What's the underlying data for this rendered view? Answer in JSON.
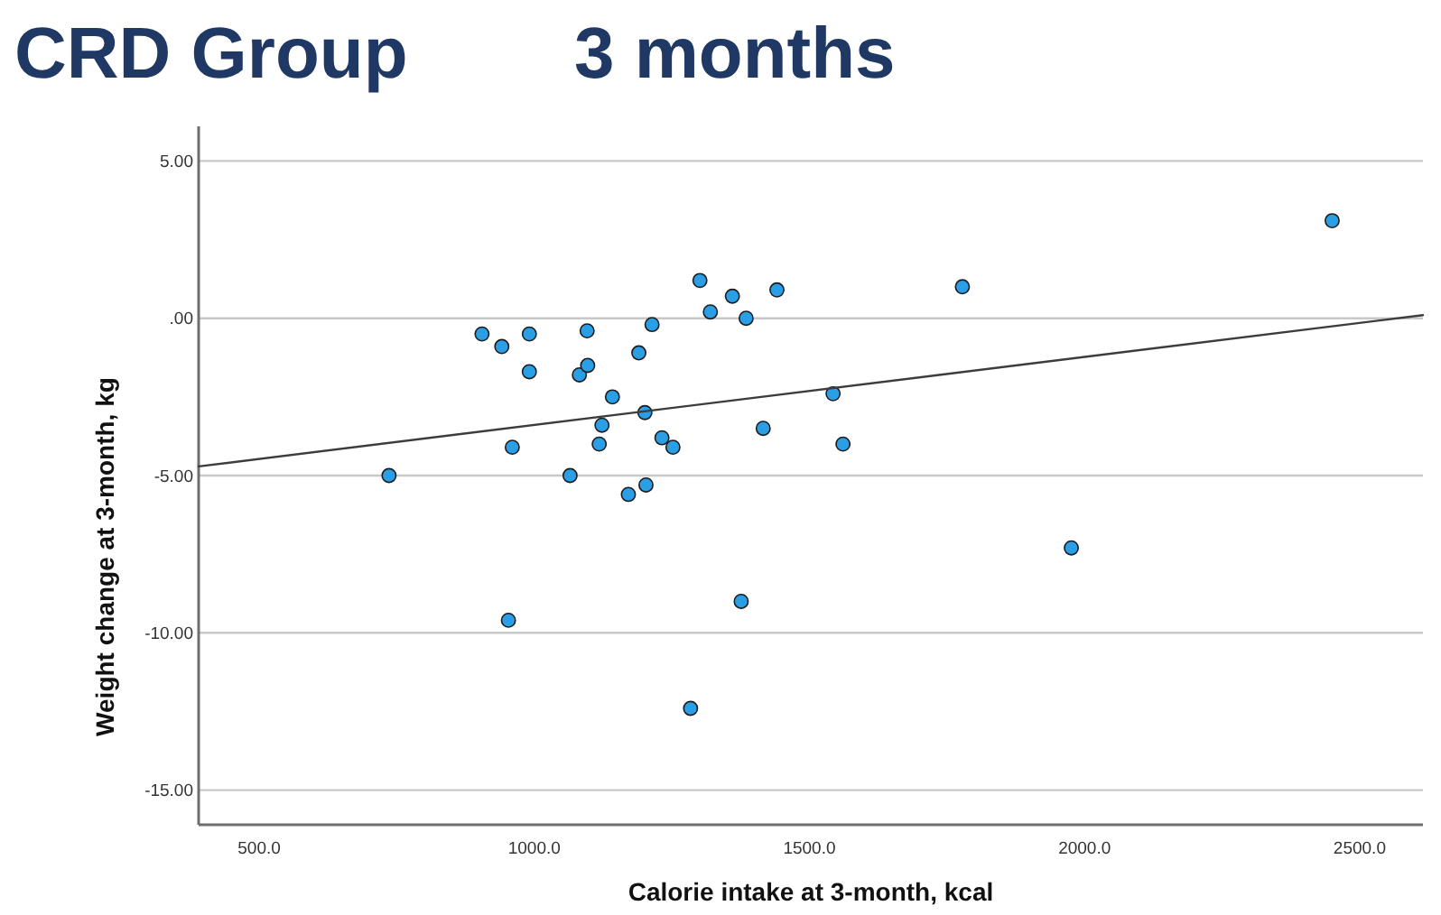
{
  "chart_data": {
    "type": "scatter",
    "title": "CRD Group",
    "subtitle": "3 months",
    "xlabel": "Calorie intake at 3-month, kcal",
    "ylabel": "Weight change at 3-month, kg",
    "xlim": [
      390,
      2615
    ],
    "ylim": [
      -16.1,
      6.1
    ],
    "xticks": [
      {
        "value": 500,
        "label": "500.0"
      },
      {
        "value": 1000,
        "label": "1000.0"
      },
      {
        "value": 1500,
        "label": "1500.0"
      },
      {
        "value": 2000,
        "label": "2000.0"
      },
      {
        "value": 2500,
        "label": "2500.0"
      }
    ],
    "yticks": [
      {
        "value": 5,
        "label": "5.00"
      },
      {
        "value": 0,
        "label": ".00"
      },
      {
        "value": -5,
        "label": "-5.00"
      },
      {
        "value": -10,
        "label": "-10.00"
      },
      {
        "value": -15,
        "label": "-15.00"
      }
    ],
    "grid": "y",
    "series": [
      {
        "color": "#2a9fe6",
        "marker": "circle",
        "x": [
          736,
          905,
          941,
          953,
          960,
          991,
          991,
          1065,
          1082,
          1096,
          1097,
          1118,
          1123,
          1142,
          1171,
          1190,
          1201,
          1203,
          1214,
          1232,
          1252,
          1284,
          1301,
          1320,
          1360,
          1376,
          1385,
          1416,
          1441,
          1543,
          1561,
          1778,
          1976,
          2450
        ],
        "values": [
          -5.0,
          -0.5,
          -0.9,
          -9.6,
          -4.1,
          -0.5,
          -1.7,
          -5.0,
          -1.8,
          -0.4,
          -1.5,
          -4.0,
          -3.4,
          -2.5,
          -5.6,
          -1.1,
          -3.0,
          -5.3,
          -0.2,
          -3.8,
          -4.1,
          -12.4,
          1.2,
          0.2,
          0.7,
          -9.0,
          0.0,
          -3.5,
          0.9,
          -2.4,
          -4.0,
          1.0,
          -7.3,
          3.1
        ]
      },
      {
        "type": "line",
        "color": "#3c3c3c",
        "x": [
          390,
          2615
        ],
        "values": [
          -4.71,
          0.1
        ]
      }
    ]
  }
}
